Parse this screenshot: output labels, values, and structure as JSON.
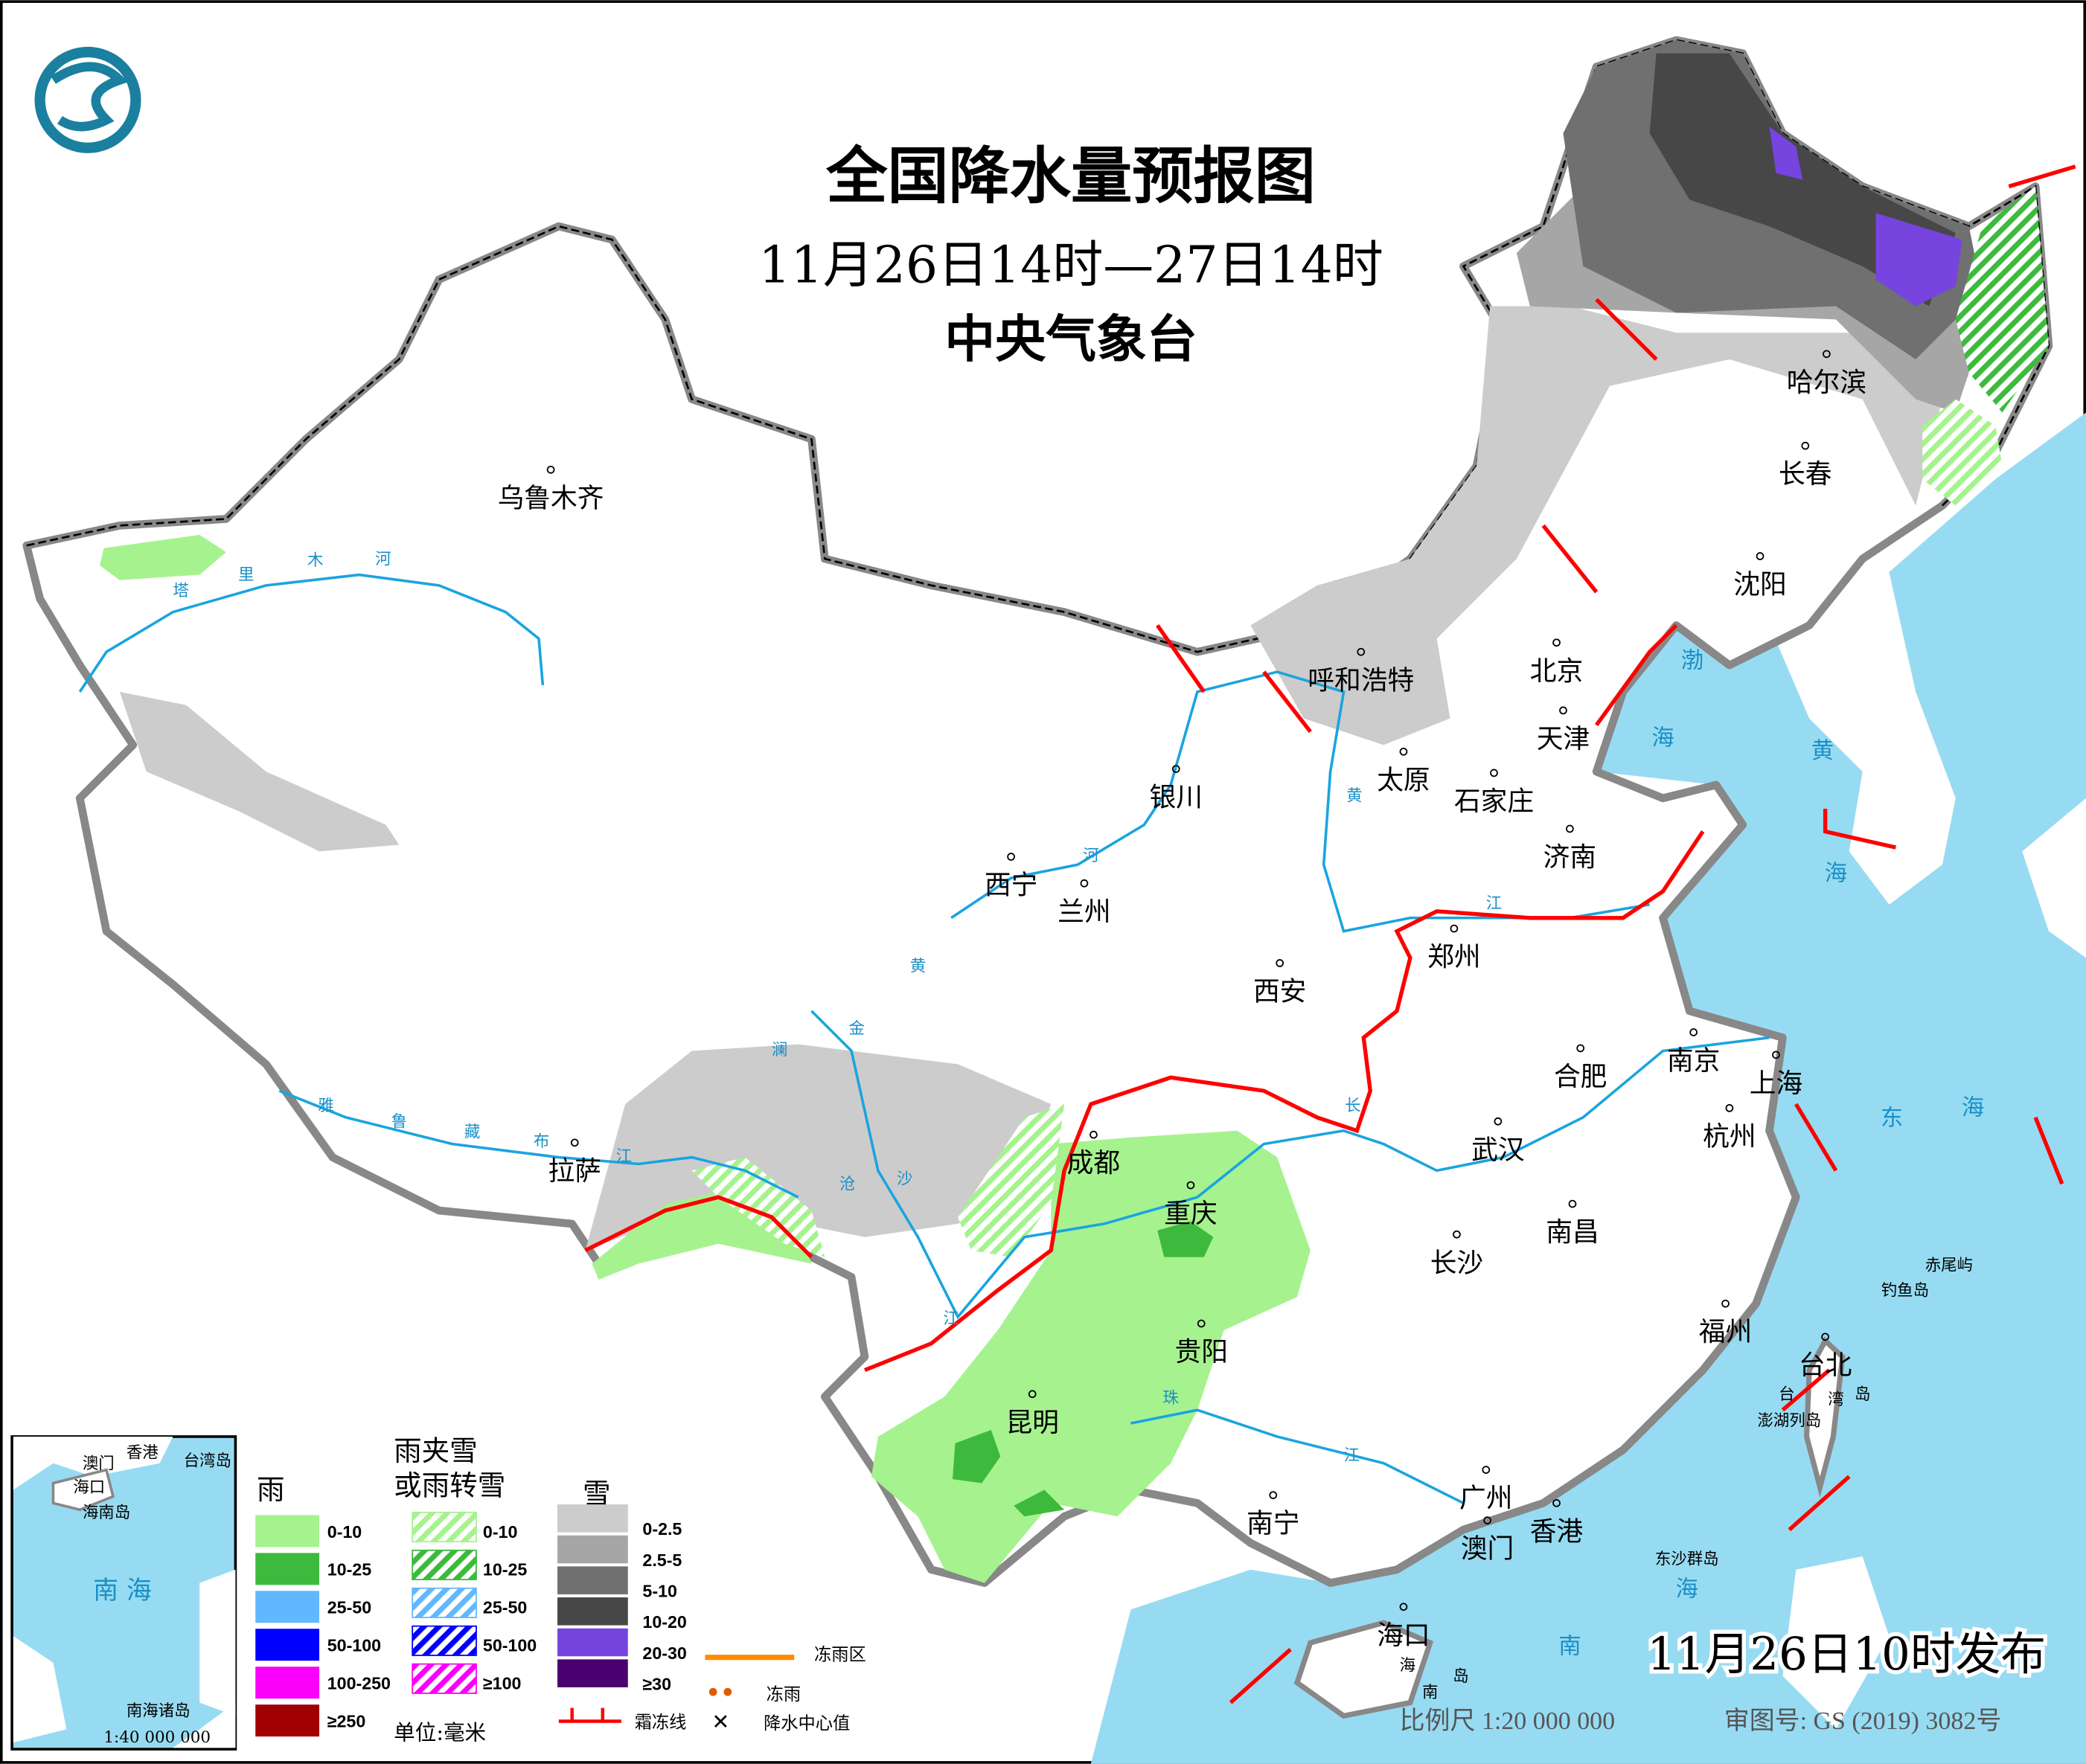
{
  "header": {
    "title": "全国降水量预报图",
    "period": "11月26日14时—27日14时",
    "issuer": "中央气象台",
    "issued": "11月26日10时发布"
  },
  "footer": {
    "scale": "比例尺 1:20 000 000",
    "review_no": "审图号: GS (2019) 3082号"
  },
  "cities": [
    "乌鲁木齐",
    "哈尔滨",
    "长春",
    "沈阳",
    "呼和浩特",
    "北京",
    "天津",
    "太原",
    "石家庄",
    "银川",
    "济南",
    "西宁",
    "兰州",
    "郑州",
    "西安",
    "合肥",
    "南京",
    "上海",
    "杭州",
    "拉萨",
    "成都",
    "武汉",
    "重庆",
    "长沙",
    "南昌",
    "贵阳",
    "福州",
    "台北",
    "昆明",
    "南宁",
    "广州",
    "澳门",
    "香港",
    "海口"
  ],
  "islands": [
    "赤尾屿",
    "钓鱼岛",
    "澎湖列岛",
    "台",
    "湾",
    "岛",
    "东沙群岛",
    "海",
    "南",
    "岛"
  ],
  "seas": [
    "渤",
    "海",
    "黄",
    "海",
    "东",
    "海",
    "南",
    "海"
  ],
  "rivers": [
    "塔",
    "里",
    "木",
    "河",
    "雅",
    "鲁",
    "藏",
    "布",
    "江",
    "黄",
    "河",
    "黄",
    "长",
    "江",
    "江",
    "金",
    "沧",
    "沙",
    "澜",
    "珠",
    "江"
  ],
  "inset": {
    "labels": [
      "香港",
      "澳门",
      "台湾岛",
      "海口",
      "海南岛",
      "南海诸岛"
    ],
    "sea": "南   海",
    "scale": "1:40 000 000"
  },
  "legend": {
    "rain_title": "雨",
    "mix_title_1": "雨夹雪",
    "mix_title_2": "或雨转雪",
    "snow_title": "雪",
    "rain": [
      {
        "label": "0-10",
        "color": "#a6f28f"
      },
      {
        "label": "10-25",
        "color": "#3dba3d"
      },
      {
        "label": "25-50",
        "color": "#61b8ff"
      },
      {
        "label": "50-100",
        "color": "#0000ff"
      },
      {
        "label": "100-250",
        "color": "#fa00fa"
      },
      {
        "label": "≥250",
        "color": "#a00000"
      }
    ],
    "mix": [
      {
        "label": "0-10",
        "color": "#a6f28f"
      },
      {
        "label": "10-25",
        "color": "#3dba3d"
      },
      {
        "label": "25-50",
        "color": "#61b8ff"
      },
      {
        "label": "50-100",
        "color": "#0000ff"
      },
      {
        "label": "≥100",
        "color": "#fa00fa"
      }
    ],
    "snow": [
      {
        "label": "0-2.5",
        "color": "#cccccc"
      },
      {
        "label": "2.5-5",
        "color": "#a6a6a6"
      },
      {
        "label": "5-10",
        "color": "#707070"
      },
      {
        "label": "10-20",
        "color": "#474747"
      },
      {
        "label": "20-30",
        "color": "#7744e0"
      },
      {
        "label": "≥30",
        "color": "#4b0070"
      }
    ],
    "freezing_rain_area": "冻雨区",
    "freezing_rain": "冻雨",
    "frost_line": "霜冻线",
    "center_value": "降水中心值",
    "unit": "单位:毫米",
    "colors": {
      "freezing_area": "#ff8c00",
      "frost_line": "#ff0000",
      "sea": "#97dbf2",
      "border": "#888888"
    }
  }
}
